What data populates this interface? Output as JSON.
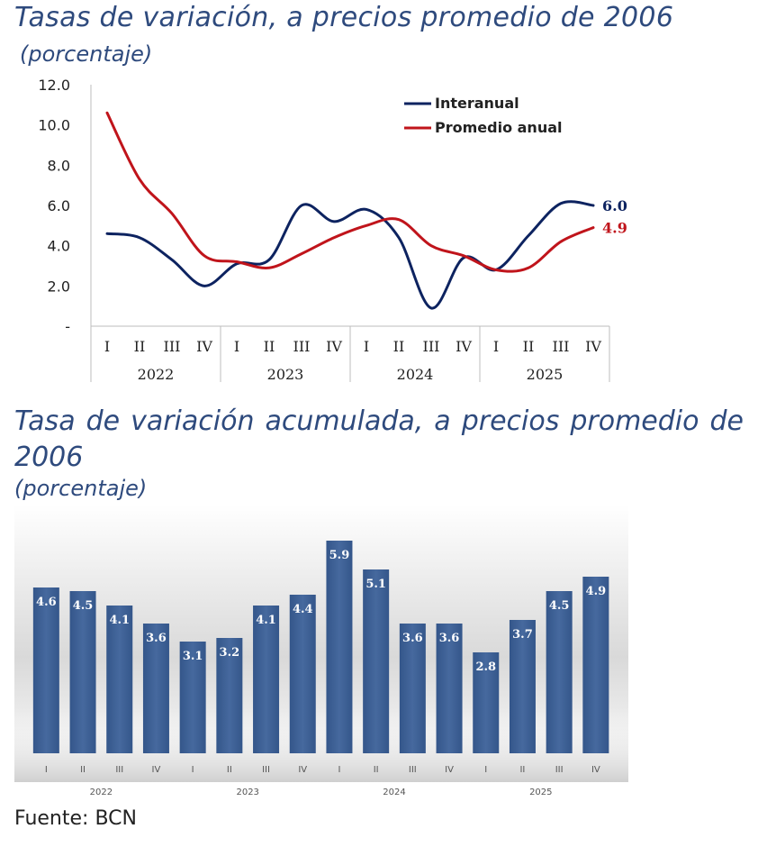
{
  "chart_data": [
    {
      "type": "line",
      "title": "Tasas de variación, a precios promedio de 2006",
      "subtitle": " (porcentaje)",
      "quarters": [
        "I",
        "II",
        "III",
        "IV",
        "I",
        "II",
        "III",
        "IV",
        "I",
        "II",
        "III",
        "IV",
        "I",
        "II",
        "III",
        "IV"
      ],
      "years": [
        "2022",
        "2023",
        "2024",
        "2025"
      ],
      "ylim": [
        0,
        12
      ],
      "yticks": [
        "-",
        "2.0",
        "4.0",
        "6.0",
        "8.0",
        "10.0",
        "12.0"
      ],
      "legend_position": "top-right",
      "series": [
        {
          "name": "Interanual",
          "color": "#0d2360",
          "values": [
            4.6,
            4.4,
            3.3,
            2.0,
            3.1,
            3.3,
            6.0,
            5.2,
            5.8,
            4.4,
            0.9,
            3.4,
            2.8,
            4.5,
            6.1,
            6.0
          ],
          "end_label": "6.0"
        },
        {
          "name": "Promedio anual",
          "color": "#c0141b",
          "values": [
            10.6,
            7.3,
            5.6,
            3.5,
            3.2,
            2.9,
            3.6,
            4.4,
            5.0,
            5.3,
            4.0,
            3.5,
            2.8,
            2.9,
            4.2,
            4.9
          ],
          "end_label": "4.9"
        }
      ]
    },
    {
      "type": "bar",
      "title": "Tasa de variación acumulada, a precios promedio de 2006",
      "subtitle": "(porcentaje)",
      "quarters": [
        "I",
        "II",
        "III",
        "IV",
        "I",
        "II",
        "III",
        "IV",
        "I",
        "II",
        "III",
        "IV",
        "I",
        "II",
        "III",
        "IV"
      ],
      "years": [
        "2022",
        "2023",
        "2024",
        "2025"
      ],
      "values": [
        4.6,
        4.5,
        4.1,
        3.6,
        3.1,
        3.2,
        4.1,
        4.4,
        5.9,
        5.1,
        3.6,
        3.6,
        2.8,
        3.7,
        4.5,
        4.9
      ],
      "labels": [
        "4.6",
        "4.5",
        "4.1",
        "3.6",
        "3.1",
        "3.2",
        "4.1",
        "4.4",
        "5.9",
        "5.1",
        "3.6",
        "3.6",
        "2.8",
        "3.7",
        "4.5",
        "4.9"
      ],
      "color": "#3c5f93"
    }
  ],
  "source": "Fuente: BCN"
}
